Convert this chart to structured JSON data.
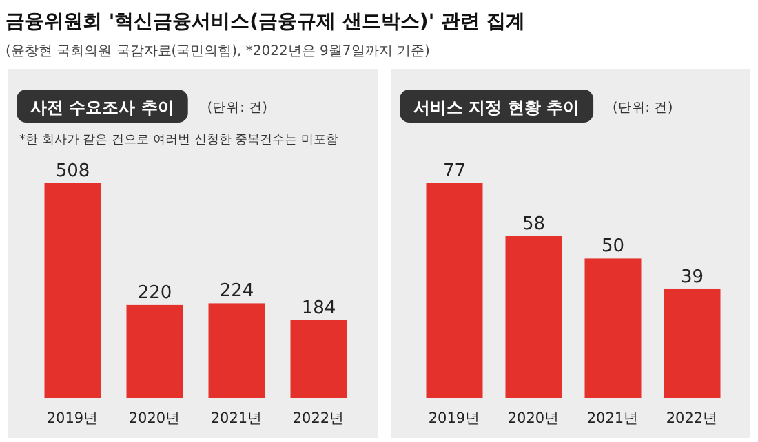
{
  "chart_data": [
    {
      "type": "other",
      "title": "금융위원회 '혁신금융서비스(금융규제 샌드박스)' 관련 집계",
      "subtitle": "(윤창현 국회의원 국감자료(국민의힘), *2022년은 9월7일까지 기준)"
    },
    {
      "type": "bar",
      "title": "사전 수요조사 추이",
      "subtitle": "(단위: 건)",
      "annotations": [
        "*한 회사가 같은 건으로 여러번 신청한 중복건수는 미포함"
      ],
      "categories": [
        "2019년",
        "2020년",
        "2021년",
        "2022년"
      ],
      "values": [
        508,
        220,
        224,
        184
      ],
      "color": "#e5312c",
      "data_labels": true
    },
    {
      "type": "bar",
      "title": "서비스 지정 현황 추이",
      "subtitle": "(단위: 건)",
      "categories": [
        "2019년",
        "2020년",
        "2021년",
        "2022년"
      ],
      "values": [
        77,
        58,
        50,
        39
      ],
      "color": "#e5312c",
      "data_labels": true
    }
  ]
}
